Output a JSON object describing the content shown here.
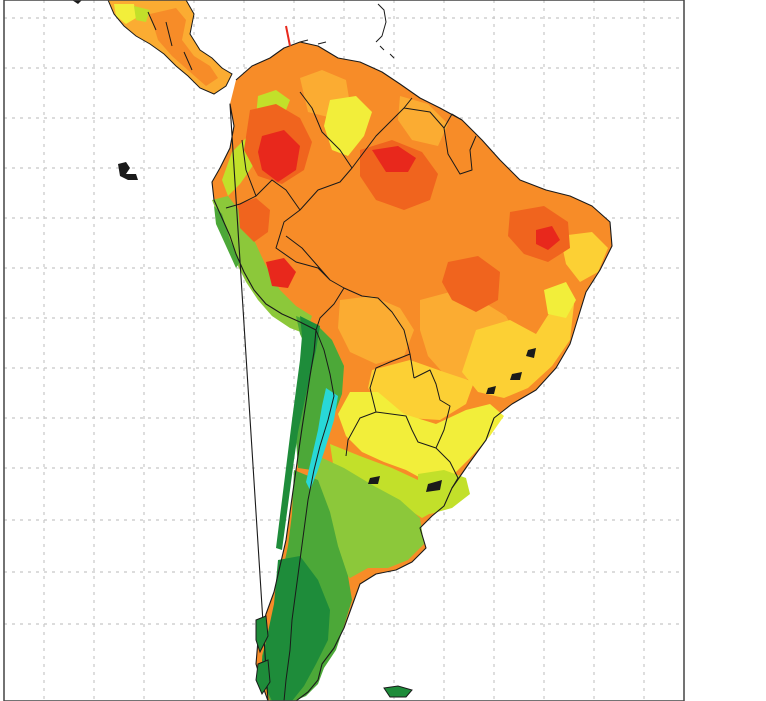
{
  "map": {
    "region": "South America",
    "style": "filled-contour",
    "gridlines": true,
    "grid_style": "dotted",
    "colors": {
      "ocean": "#ffffff",
      "frame": "#444444",
      "grid": "#c8c8c8",
      "border": "#1a1a1a",
      "red": "#e8281c",
      "dark_orange": "#f0641e",
      "orange": "#f78c28",
      "light_orange": "#fbac32",
      "yellow_orange": "#fcd034",
      "yellow": "#f2ee3a",
      "yellow_green": "#c2e02a",
      "light_green": "#8cc83a",
      "green": "#4ca838",
      "dark_green": "#1e8c3a",
      "cyan": "#28d8d8",
      "marker": "#e8281c"
    }
  }
}
